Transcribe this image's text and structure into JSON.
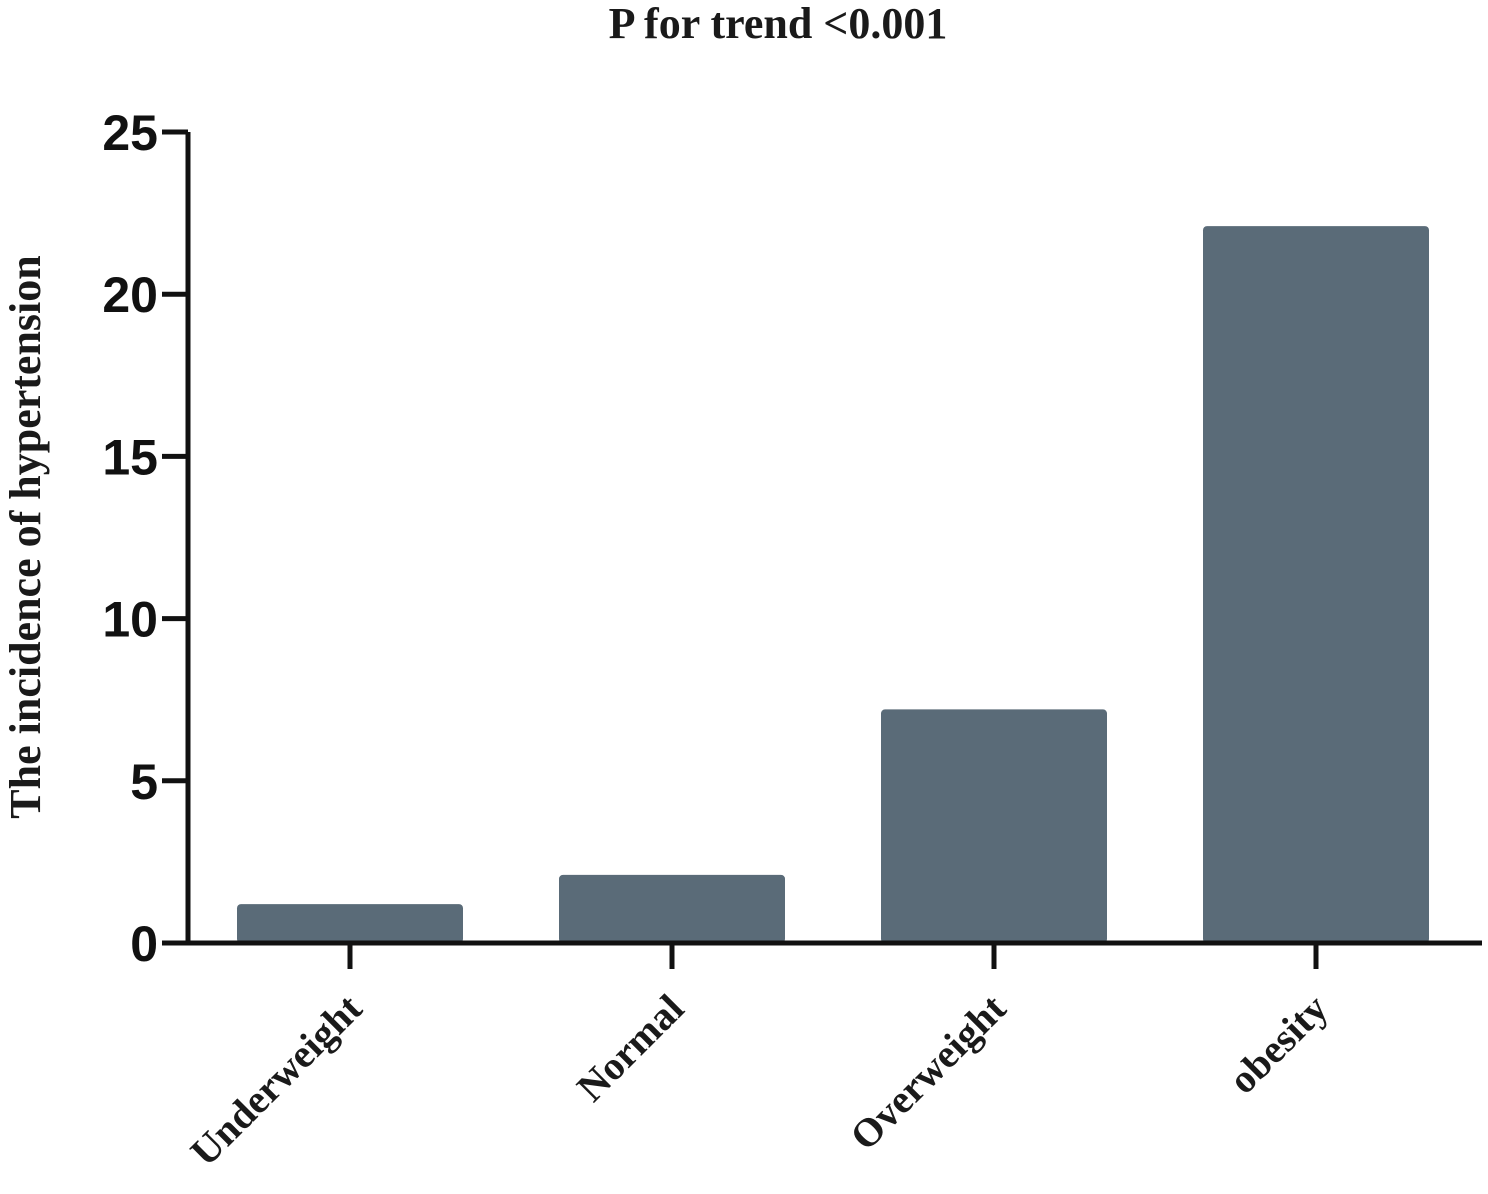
{
  "chart_data": {
    "type": "bar",
    "title": "P for trend <0.001",
    "xlabel": "",
    "ylabel": "The incidence of hypertension",
    "categories": [
      "Underweight",
      "Normal",
      "Overweight",
      "obesity"
    ],
    "values": [
      1.2,
      2.1,
      7.2,
      22.1
    ],
    "ylim": [
      0,
      25
    ],
    "yticks": [
      "0",
      "5",
      "10",
      "15",
      "20",
      "25"
    ],
    "grid": false,
    "legend": "none",
    "colors": {
      "bar": "#5a6b78",
      "axis": "#111111"
    }
  }
}
